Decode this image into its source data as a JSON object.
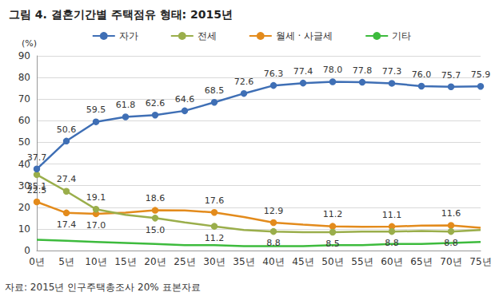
{
  "chart_data": {
    "type": "line",
    "title": "그림 4. 결혼기간별 주택점유 형태: 2015년",
    "y_label": "(%)",
    "source": "자료: 2015년 인구주택총조사 20% 표본자료",
    "categories": [
      "0년",
      "5년",
      "10년",
      "15년",
      "20년",
      "25년",
      "30년",
      "35년",
      "40년",
      "45년",
      "50년",
      "55년",
      "60년",
      "65년",
      "70년",
      "75년"
    ],
    "series": [
      {
        "name": "자가",
        "color": "#3f6fb5",
        "values": [
          37.7,
          50.6,
          59.5,
          61.8,
          62.6,
          64.6,
          68.5,
          72.6,
          76.3,
          77.4,
          78.0,
          77.8,
          77.3,
          76.0,
          75.7,
          75.9
        ],
        "value_labels": [
          "37.7",
          "50.6",
          "59.5",
          "61.8",
          "62.6",
          "64.6",
          "68.5",
          "72.6",
          "76.3",
          "77.4",
          "78.0",
          "77.8",
          "77.3",
          "76.0",
          "75.7",
          "75.9"
        ]
      },
      {
        "name": "전세",
        "color": "#9aae4b",
        "values": [
          35.1,
          27.4,
          19.1,
          16.5,
          15.0,
          13.0,
          11.2,
          9.5,
          8.8,
          8.5,
          8.5,
          8.8,
          8.8,
          9.0,
          8.8,
          9.5
        ],
        "value_labels": [
          "35.1",
          "27.4",
          "19.1",
          null,
          "15.0",
          null,
          "11.2",
          null,
          "8.8",
          null,
          "8.5",
          null,
          "8.8",
          null,
          "8.8",
          null
        ]
      },
      {
        "name": "월세 · 사글세",
        "color": "#e38b1c",
        "values": [
          22.5,
          17.4,
          17.0,
          17.5,
          18.6,
          18.5,
          17.6,
          15.5,
          12.9,
          12.0,
          11.2,
          11.0,
          11.1,
          11.5,
          11.6,
          10.5
        ],
        "value_labels": [
          "22.5",
          "17.4",
          "17.0",
          null,
          "18.6",
          null,
          "17.6",
          null,
          "12.9",
          null,
          "11.2",
          null,
          "11.1",
          null,
          "11.6",
          null
        ]
      },
      {
        "name": "기타",
        "color": "#3dbb3d",
        "values": [
          5.0,
          4.5,
          4.0,
          3.5,
          3.0,
          2.5,
          2.5,
          2.0,
          2.0,
          2.0,
          2.5,
          2.5,
          3.0,
          3.0,
          3.5,
          4.0
        ]
      }
    ],
    "ylim": [
      0,
      90
    ],
    "yticks": [
      0,
      10,
      20,
      30,
      40,
      50,
      60,
      70,
      80,
      90
    ],
    "grid": true,
    "legend": "top",
    "marker": "circle",
    "data_labels": true
  }
}
